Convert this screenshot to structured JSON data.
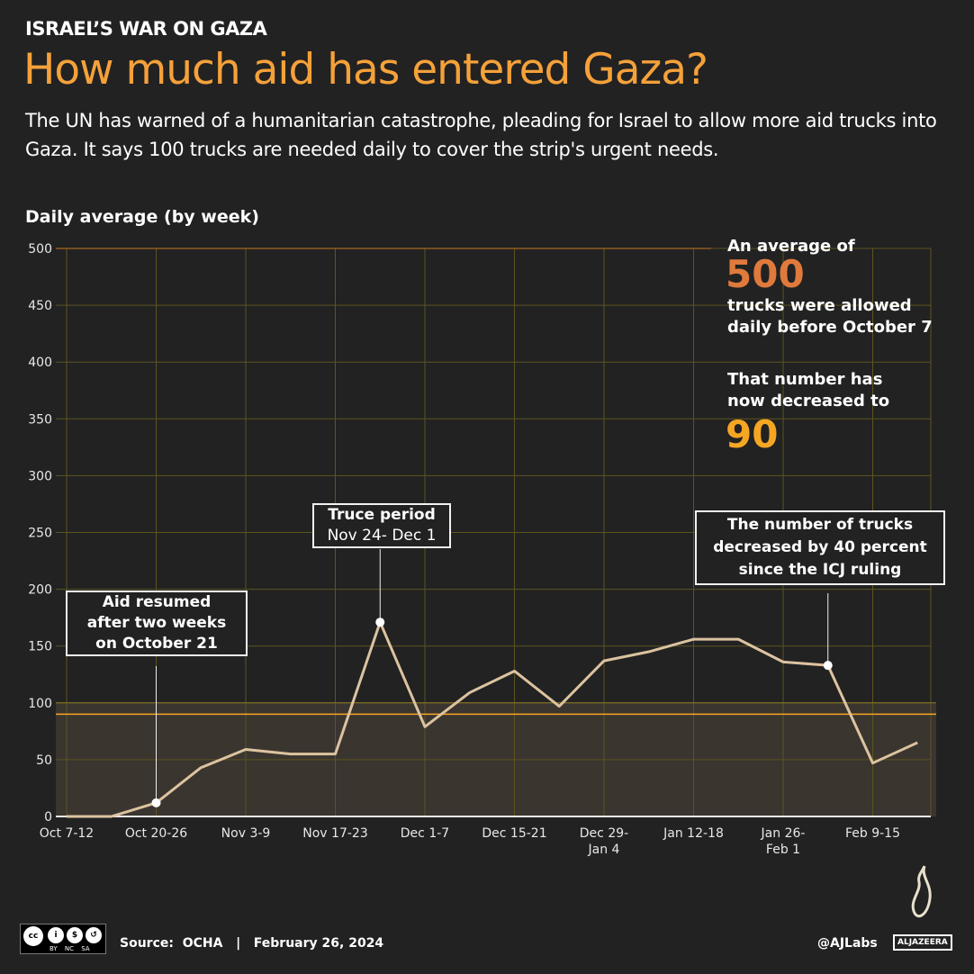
{
  "header": {
    "kicker": "ISRAEL’S WAR ON GAZA",
    "title": "How much aid has entered Gaza?",
    "subtitle": "The UN has warned of a humanitarian catastrophe, pleading for Israel to allow more aid trucks into Gaza. It says 100 trucks are needed daily to cover the strip's urgent needs."
  },
  "chart_data": {
    "type": "line",
    "ylabel": "Daily average (by week)",
    "ylim": [
      0,
      500
    ],
    "yticks": [
      0,
      50,
      100,
      150,
      200,
      250,
      300,
      350,
      400,
      450,
      500
    ],
    "xtick_labels": [
      [
        "Oct 7-12"
      ],
      [
        "Oct 20-26"
      ],
      [
        "Nov 3-9"
      ],
      [
        "Nov 17-23"
      ],
      [
        "Dec 1-7"
      ],
      [
        "Dec 15-21"
      ],
      [
        "Dec 29-",
        "Jan 4"
      ],
      [
        "Jan 12-18"
      ],
      [
        "Jan 26-",
        "Feb 1"
      ],
      [
        "Feb 9-15"
      ]
    ],
    "values": [
      0,
      0,
      12,
      43,
      59,
      55,
      55,
      171,
      79,
      109,
      128,
      97,
      137,
      145,
      156,
      156,
      136,
      133,
      47,
      65
    ],
    "reference_lines": [
      {
        "value": 500,
        "color": "#c8741f"
      },
      {
        "value": 100,
        "color": "#8a7a25"
      },
      {
        "value": 90,
        "color": "#f5a623"
      }
    ],
    "grid": true,
    "line_color": "#dcc3a0"
  },
  "annotations": {
    "aid": {
      "lines": [
        "Aid resumed",
        "after two weeks",
        "on October 21"
      ]
    },
    "truce": {
      "lines": [
        "Truce period",
        "Nov 24- Dec 1"
      ]
    },
    "icj": {
      "lines": [
        "The number of trucks",
        "decreased by 40 percent",
        "since the ICJ ruling"
      ]
    }
  },
  "side": {
    "before_label": "An average of",
    "before_value": "500",
    "before_desc1": "trucks were allowed",
    "before_desc2": "daily before October 7",
    "now_label1": "That number has",
    "now_label2": "now decreased to",
    "now_value": "90",
    "color_500": "#e07a3c",
    "color_90": "#f5a623"
  },
  "footer": {
    "license": "BY NC SA",
    "source": "Source:  OCHA   |   February 26, 2024",
    "handle": "@AJLabs",
    "logo": "ALJAZEERA"
  }
}
